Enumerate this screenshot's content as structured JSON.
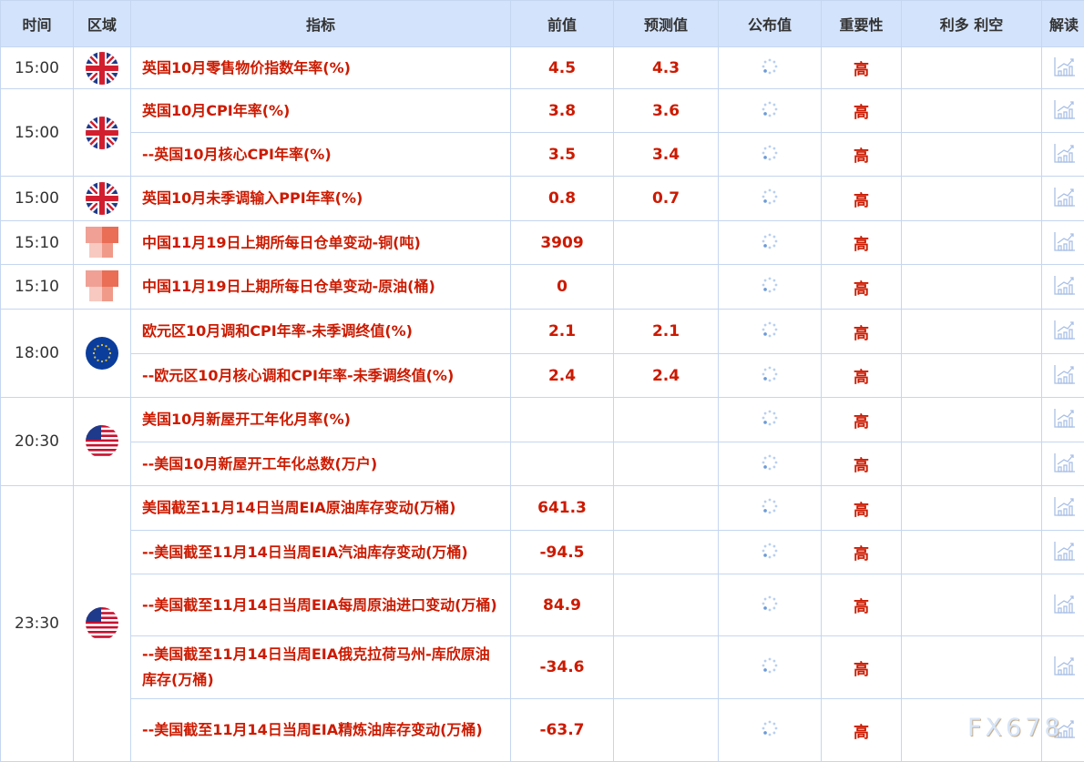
{
  "header": {
    "time": "时间",
    "region": "区域",
    "indicator": "指标",
    "previous": "前值",
    "forecast": "预测值",
    "actual": "公布值",
    "importance": "重要性",
    "impact": "利多 利空",
    "analysis": "解读"
  },
  "colors": {
    "header_bg": "#d3e3fb",
    "accent": "#cc1a00",
    "border": "#c5d6f0"
  },
  "groups": [
    {
      "time": "15:00",
      "flag": "uk-flag",
      "rows": [
        {
          "indicator": "英国10月零售物价指数年率(%)",
          "previous": "4.5",
          "forecast": "4.3",
          "importance": "高"
        }
      ]
    },
    {
      "time": "15:00",
      "flag": "uk-flag",
      "rows": [
        {
          "indicator": "英国10月CPI年率(%)",
          "previous": "3.8",
          "forecast": "3.6",
          "importance": "高"
        },
        {
          "indicator": "--英国10月核心CPI年率(%)",
          "previous": "3.5",
          "forecast": "3.4",
          "importance": "高"
        }
      ]
    },
    {
      "time": "15:00",
      "flag": "uk-flag",
      "rows": [
        {
          "indicator": "英国10月未季调输入PPI年率(%)",
          "previous": "0.8",
          "forecast": "0.7",
          "importance": "高"
        }
      ]
    },
    {
      "time": "15:10",
      "flag": "china-flag",
      "rows": [
        {
          "indicator": "中国11月19日上期所每日仓单变动-铜(吨)",
          "previous": "3909",
          "forecast": "",
          "importance": "高"
        }
      ]
    },
    {
      "time": "15:10",
      "flag": "china-flag",
      "rows": [
        {
          "indicator": "中国11月19日上期所每日仓单变动-原油(桶)",
          "previous": "0",
          "forecast": "",
          "importance": "高"
        }
      ]
    },
    {
      "time": "18:00",
      "flag": "eu-flag",
      "rows": [
        {
          "indicator": "欧元区10月调和CPI年率-未季调终值(%)",
          "previous": "2.1",
          "forecast": "2.1",
          "importance": "高"
        },
        {
          "indicator": "--欧元区10月核心调和CPI年率-未季调终值(%)",
          "previous": "2.4",
          "forecast": "2.4",
          "importance": "高"
        }
      ]
    },
    {
      "time": "20:30",
      "flag": "us-flag",
      "rows": [
        {
          "indicator": "美国10月新屋开工年化月率(%)",
          "previous": "",
          "forecast": "",
          "importance": "高"
        },
        {
          "indicator": "--美国10月新屋开工年化总数(万户)",
          "previous": "",
          "forecast": "",
          "importance": "高"
        }
      ]
    },
    {
      "time": "23:30",
      "flag": "us-flag",
      "rows": [
        {
          "indicator": "美国截至11月14日当周EIA原油库存变动(万桶)",
          "previous": "641.3",
          "forecast": "",
          "importance": "高"
        },
        {
          "indicator": "--美国截至11月14日当周EIA汽油库存变动(万桶)",
          "previous": "-94.5",
          "forecast": "",
          "importance": "高"
        },
        {
          "indicator": "--美国截至11月14日当周EIA每周原油进口变动(万桶)",
          "previous": "84.9",
          "forecast": "",
          "importance": "高"
        },
        {
          "indicator": "--美国截至11月14日当周EIA俄克拉荷马州-库欣原油库存(万桶)",
          "previous": "-34.6",
          "forecast": "",
          "importance": "高"
        },
        {
          "indicator": "--美国截至11月14日当周EIA精炼油库存变动(万桶)",
          "previous": "-63.7",
          "forecast": "",
          "importance": "高"
        }
      ]
    }
  ],
  "watermark": "FX678"
}
